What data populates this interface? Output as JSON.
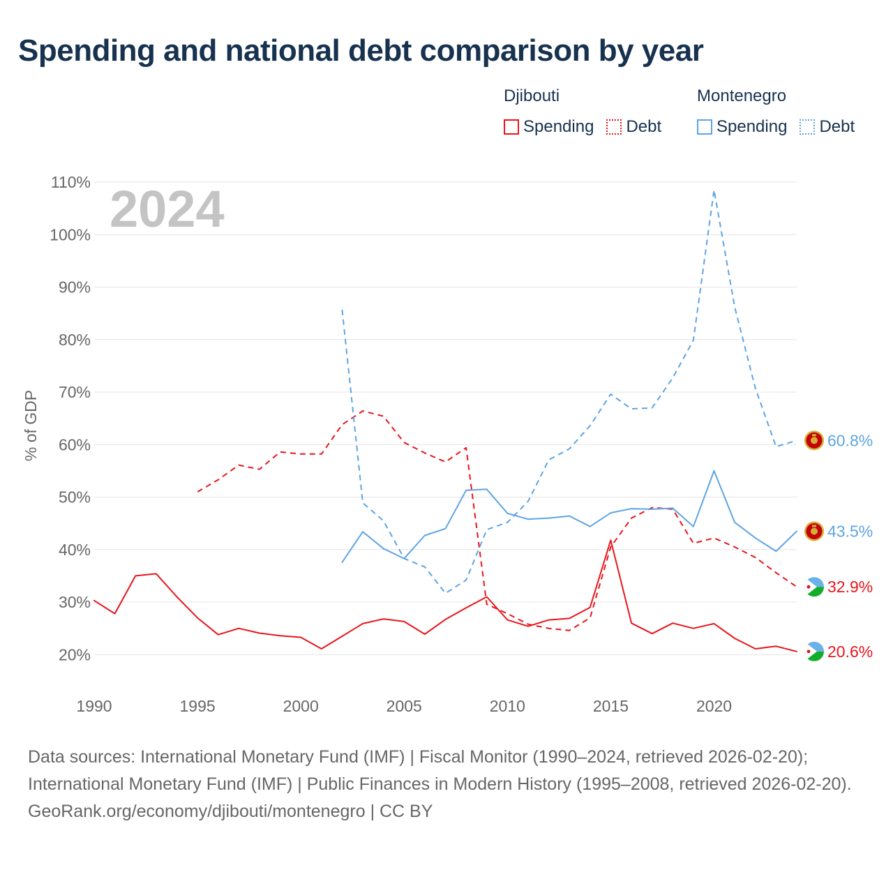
{
  "title": "Spending and national debt comparison by year",
  "legend": {
    "groups": [
      {
        "country": "Djibouti",
        "color": "#e8141b",
        "items": [
          {
            "label": "Spending",
            "style": "solid"
          },
          {
            "label": "Debt",
            "style": "dotted"
          }
        ]
      },
      {
        "country": "Montenegro",
        "color": "#5da4e3",
        "items": [
          {
            "label": "Spending",
            "style": "solid"
          },
          {
            "label": "Debt",
            "style": "dotted"
          }
        ]
      }
    ]
  },
  "chart_data": {
    "type": "line",
    "title": "Spending and national debt comparison by year",
    "ylabel": "% of GDP",
    "xlabel": "",
    "xlim": [
      1990,
      2024
    ],
    "ylim": [
      13,
      110
    ],
    "yticks": [
      20,
      30,
      40,
      50,
      60,
      70,
      80,
      90,
      100,
      110
    ],
    "ytick_labels": [
      "20%",
      "30%",
      "40%",
      "50%",
      "60%",
      "70%",
      "80%",
      "90%",
      "100%",
      "110%"
    ],
    "xticks": [
      1990,
      1995,
      2000,
      2005,
      2010,
      2015,
      2020
    ],
    "xtick_labels": [
      "1990",
      "1995",
      "2000",
      "2005",
      "2010",
      "2015",
      "2020"
    ],
    "year_label": "2024",
    "grid": true,
    "series": [
      {
        "name": "Djibouti Spending",
        "country": "Djibouti",
        "metric": "Spending",
        "color": "#e8141b",
        "dash": "solid",
        "x": [
          1990,
          1991,
          1992,
          1993,
          1994,
          1995,
          1996,
          1997,
          1998,
          1999,
          2000,
          2001,
          2002,
          2003,
          2004,
          2005,
          2006,
          2007,
          2008,
          2009,
          2010,
          2011,
          2012,
          2013,
          2014,
          2015,
          2016,
          2017,
          2018,
          2019,
          2020,
          2021,
          2022,
          2023,
          2024
        ],
        "y": [
          30.3,
          27.8,
          35.0,
          35.4,
          31.0,
          27.0,
          23.8,
          25.0,
          24.1,
          23.6,
          23.3,
          21.1,
          23.5,
          25.9,
          26.8,
          26.3,
          23.9,
          26.7,
          28.9,
          31.0,
          26.6,
          25.4,
          26.6,
          26.9,
          29.0,
          41.8,
          26.0,
          24.0,
          26.0,
          25.0,
          25.9,
          23.1,
          21.1,
          21.6,
          20.6
        ],
        "end_label": "20.6%",
        "end_icon": "djibouti-flag-icon"
      },
      {
        "name": "Djibouti Debt",
        "country": "Djibouti",
        "metric": "Debt",
        "color": "#e8141b",
        "dash": "dashed",
        "x": [
          1995,
          1996,
          1997,
          1998,
          1999,
          2000,
          2001,
          2002,
          2003,
          2004,
          2005,
          2006,
          2007,
          2008,
          2009,
          2010,
          2011,
          2012,
          2013,
          2014,
          2015,
          2016,
          2017,
          2018,
          2019,
          2020,
          2021,
          2022,
          2023,
          2024
        ],
        "y": [
          51.0,
          53.3,
          56.1,
          55.3,
          58.6,
          58.2,
          58.2,
          63.8,
          66.4,
          65.4,
          60.4,
          58.4,
          56.7,
          59.4,
          29.6,
          27.8,
          25.8,
          25.0,
          24.6,
          27.0,
          40.5,
          46.0,
          48.0,
          47.7,
          41.2,
          42.2,
          40.5,
          38.5,
          35.6,
          32.9
        ],
        "end_label": "32.9%",
        "end_icon": "djibouti-flag-icon"
      },
      {
        "name": "Montenegro Spending",
        "country": "Montenegro",
        "metric": "Spending",
        "color": "#5da4e3",
        "dash": "solid",
        "x": [
          2002,
          2003,
          2004,
          2005,
          2006,
          2007,
          2008,
          2009,
          2010,
          2011,
          2012,
          2013,
          2014,
          2015,
          2016,
          2017,
          2018,
          2019,
          2020,
          2021,
          2022,
          2023,
          2024
        ],
        "y": [
          37.6,
          43.4,
          40.2,
          38.3,
          42.7,
          44.0,
          51.3,
          51.5,
          46.9,
          45.8,
          46.0,
          46.4,
          44.4,
          47.0,
          47.8,
          47.7,
          47.9,
          44.4,
          55.0,
          45.2,
          42.2,
          39.7,
          43.5
        ],
        "end_label": "43.5%",
        "end_icon": "montenegro-flag-icon"
      },
      {
        "name": "Montenegro Debt",
        "country": "Montenegro",
        "metric": "Debt",
        "color": "#5da4e3",
        "dash": "dashed",
        "x": [
          2002,
          2003,
          2004,
          2005,
          2006,
          2007,
          2008,
          2009,
          2010,
          2011,
          2012,
          2013,
          2014,
          2015,
          2016,
          2017,
          2018,
          2019,
          2020,
          2021,
          2022,
          2023,
          2024
        ],
        "y": [
          85.7,
          48.9,
          45.5,
          38.3,
          36.7,
          31.7,
          34.2,
          43.8,
          45.2,
          49.2,
          57.1,
          59.2,
          63.6,
          69.6,
          66.8,
          67.0,
          72.7,
          79.9,
          108.5,
          86.2,
          70.7,
          59.6,
          60.8
        ],
        "end_label": "60.8%",
        "end_icon": "montenegro-flag-icon"
      }
    ]
  },
  "footer": {
    "sources": "Data sources: International Monetary Fund (IMF) | Fiscal Monitor (1990–2024, retrieved 2026-02-20); International Monetary Fund (IMF) | Public Finances in Modern History (1995–2008, retrieved 2026-02-20).",
    "attribution": "GeoRank.org/economy/djibouti/montenegro | CC BY"
  }
}
